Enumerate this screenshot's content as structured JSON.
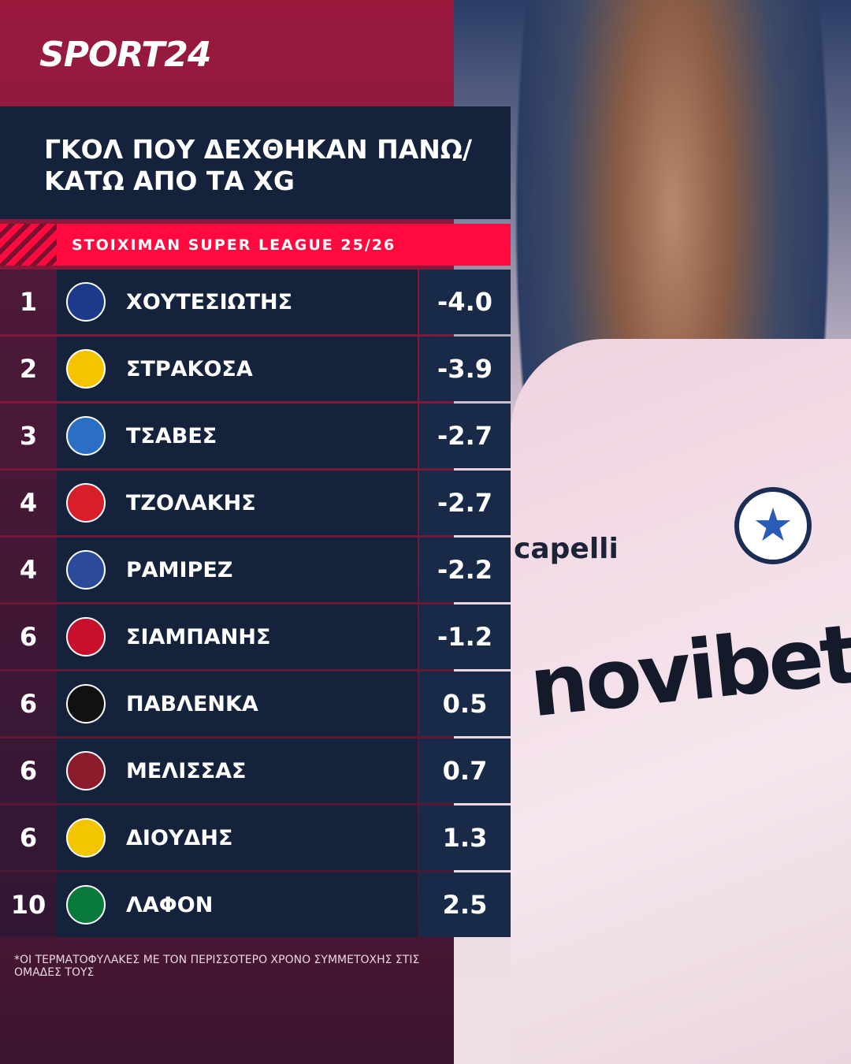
{
  "brand": "SPORT24",
  "title_lines": [
    "ΓΚΟΛ ΠΟΥ ΔΕΧΘΗΚΑΝ ΠΑΝΩ/",
    "ΚΑΤΩ ΑΠΟ ΤΑ XG"
  ],
  "subtitle": "STOIXIMAN SUPER LEAGUE 25/26",
  "table": {
    "rows": [
      [
        "1",
        "ΧΟΥΤΕΣΙΩΤΗΣ",
        "-4.0"
      ],
      [
        "2",
        "ΣΤΡΑΚΟΣΑ",
        "-3.9"
      ],
      [
        "3",
        "ΤΣΑΒΕΣ",
        "-2.7"
      ],
      [
        "4",
        "ΤΖΟΛΑΚΗΣ",
        "-2.7"
      ],
      [
        "4",
        "ΡΑΜΙΡΕΖ",
        "-2.2"
      ],
      [
        "6",
        "ΣΙΑΜΠΑΝΗΣ",
        "-1.2"
      ],
      [
        "6",
        "ΠΑΒΛΕΝΚΑ",
        "0.5"
      ],
      [
        "6",
        "ΜΕΛΙΣΣΑΣ",
        "0.7"
      ],
      [
        "6",
        "ΔΙΟΥΔΗΣ",
        "1.3"
      ],
      [
        "10",
        "ΛΑΦΟΝ",
        "2.5"
      ]
    ]
  },
  "footnote": "*ΟΙ ΤΕΡΜΑΤΟΦΥΛΑΚΕΣ ΜΕ ΤΟΝ ΠΕΡΙΣΣΟΤΕΡΟ ΧΡΟΝΟ ΣΥΜΜΕΤΟΧΗΣ ΣΤΙΣ ΟΜΑΔΕΣ ΤΟΥΣ",
  "photo": {
    "kit_brand": "capelli",
    "sponsor": "novibet"
  }
}
